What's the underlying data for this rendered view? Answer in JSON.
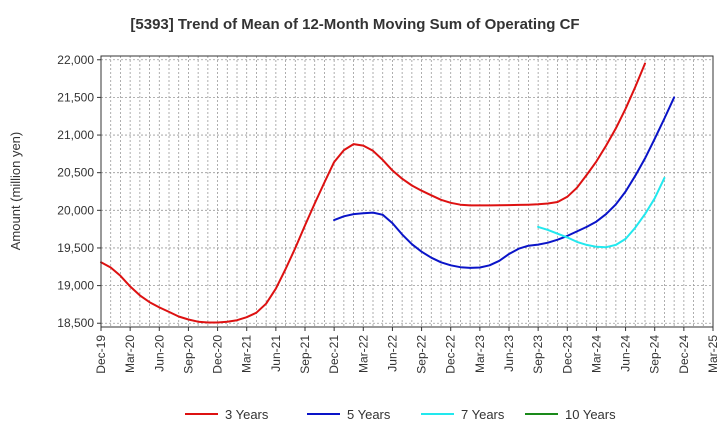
{
  "chart_data": {
    "type": "line",
    "title": "[5393]  Trend of Mean of 12-Month Moving Sum of Operating CF",
    "xlabel": "",
    "ylabel": "Amount (million yen)",
    "ylim": [
      18450,
      22050
    ],
    "yticks": [
      18500,
      19000,
      19500,
      20000,
      20500,
      21000,
      21500,
      22000
    ],
    "ytick_labels": [
      "18,500",
      "19,000",
      "19,500",
      "20,000",
      "20,500",
      "21,000",
      "21,500",
      "22,000"
    ],
    "xticks": [
      "Dec-19",
      "Mar-20",
      "Jun-20",
      "Sep-20",
      "Dec-20",
      "Mar-21",
      "Jun-21",
      "Sep-21",
      "Dec-21",
      "Mar-22",
      "Jun-22",
      "Sep-22",
      "Dec-22",
      "Mar-23",
      "Jun-23",
      "Sep-23",
      "Dec-23",
      "Mar-24",
      "Jun-24",
      "Sep-24",
      "Dec-24",
      "Mar-25"
    ],
    "grid": true,
    "legend_position": "bottom",
    "series": [
      {
        "name": "3 Years",
        "color": "#dd1111",
        "points": [
          [
            0,
            19310
          ],
          [
            1,
            19240
          ],
          [
            2,
            19130
          ],
          [
            3,
            18990
          ],
          [
            4,
            18870
          ],
          [
            5,
            18780
          ],
          [
            6,
            18710
          ],
          [
            7,
            18650
          ],
          [
            8,
            18590
          ],
          [
            9,
            18550
          ],
          [
            10,
            18520
          ],
          [
            11,
            18510
          ],
          [
            12,
            18510
          ],
          [
            13,
            18520
          ],
          [
            14,
            18540
          ],
          [
            15,
            18580
          ],
          [
            16,
            18640
          ],
          [
            17,
            18760
          ],
          [
            18,
            18960
          ],
          [
            19,
            19220
          ],
          [
            20,
            19500
          ],
          [
            21,
            19800
          ],
          [
            22,
            20090
          ],
          [
            23,
            20370
          ],
          [
            24,
            20640
          ],
          [
            25,
            20800
          ],
          [
            26,
            20880
          ],
          [
            27,
            20860
          ],
          [
            28,
            20790
          ],
          [
            29,
            20670
          ],
          [
            30,
            20530
          ],
          [
            31,
            20420
          ],
          [
            32,
            20330
          ],
          [
            33,
            20260
          ],
          [
            34,
            20200
          ],
          [
            35,
            20140
          ],
          [
            36,
            20100
          ],
          [
            37,
            20075
          ],
          [
            38,
            20065
          ],
          [
            39,
            20065
          ],
          [
            40,
            20065
          ],
          [
            41,
            20068
          ],
          [
            42,
            20070
          ],
          [
            43,
            20072
          ],
          [
            44,
            20075
          ],
          [
            45,
            20080
          ],
          [
            46,
            20090
          ],
          [
            47,
            20110
          ],
          [
            48,
            20180
          ],
          [
            49,
            20300
          ],
          [
            50,
            20470
          ],
          [
            51,
            20650
          ],
          [
            52,
            20860
          ],
          [
            53,
            21090
          ],
          [
            54,
            21350
          ],
          [
            55,
            21640
          ],
          [
            56,
            21950
          ]
        ]
      },
      {
        "name": "5 Years",
        "color": "#0a14c8",
        "points": [
          [
            24,
            19870
          ],
          [
            25,
            19920
          ],
          [
            26,
            19950
          ],
          [
            27,
            19960
          ],
          [
            28,
            19970
          ],
          [
            29,
            19940
          ],
          [
            30,
            19830
          ],
          [
            31,
            19680
          ],
          [
            32,
            19550
          ],
          [
            33,
            19450
          ],
          [
            34,
            19370
          ],
          [
            35,
            19310
          ],
          [
            36,
            19270
          ],
          [
            37,
            19245
          ],
          [
            38,
            19235
          ],
          [
            39,
            19240
          ],
          [
            40,
            19270
          ],
          [
            41,
            19330
          ],
          [
            42,
            19420
          ],
          [
            43,
            19490
          ],
          [
            44,
            19530
          ],
          [
            45,
            19545
          ],
          [
            46,
            19570
          ],
          [
            47,
            19610
          ],
          [
            48,
            19660
          ],
          [
            49,
            19720
          ],
          [
            50,
            19780
          ],
          [
            51,
            19850
          ],
          [
            52,
            19950
          ],
          [
            53,
            20080
          ],
          [
            54,
            20250
          ],
          [
            55,
            20460
          ],
          [
            56,
            20690
          ],
          [
            57,
            20950
          ],
          [
            58,
            21220
          ],
          [
            59,
            21500
          ]
        ]
      },
      {
        "name": "7 Years",
        "color": "#22e8ee",
        "points": [
          [
            45,
            19780
          ],
          [
            46,
            19740
          ],
          [
            47,
            19690
          ],
          [
            48,
            19640
          ],
          [
            49,
            19580
          ],
          [
            50,
            19540
          ],
          [
            51,
            19515
          ],
          [
            52,
            19510
          ],
          [
            53,
            19540
          ],
          [
            54,
            19620
          ],
          [
            55,
            19770
          ],
          [
            56,
            19950
          ],
          [
            57,
            20160
          ],
          [
            58,
            20430
          ]
        ]
      },
      {
        "name": "10 Years",
        "color": "#1a8a1a",
        "points": []
      }
    ]
  }
}
